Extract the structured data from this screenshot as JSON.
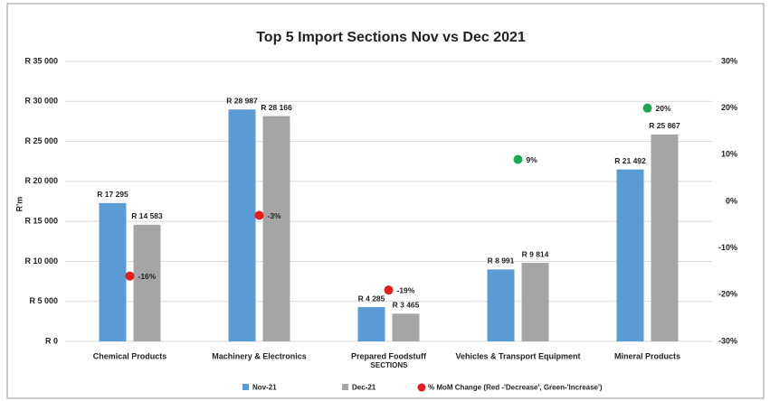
{
  "chart_data": {
    "type": "bar",
    "title": "Top 5 Import Sections Nov vs Dec 2021",
    "x_label": "SECTIONS",
    "y_label": "R'm",
    "categories": [
      "Chemical Products",
      "Machinery & Electronics",
      "Prepared Foodstuff",
      "Vehicles & Transport Equipment",
      "Mineral Products"
    ],
    "series": [
      {
        "name": "Nov-21",
        "color": "#5b9bd5",
        "values": [
          17295,
          28987,
          4285,
          8991,
          21492
        ],
        "value_labels": [
          "R 17 295",
          "R 28 987",
          "R 4 285",
          "R 8 991",
          "R 21 492"
        ]
      },
      {
        "name": "Dec-21",
        "color": "#a5a5a5",
        "values": [
          14583,
          28166,
          3465,
          9814,
          25867
        ],
        "value_labels": [
          "R 14 583",
          "R 28 166",
          "R 3 465",
          "R 9 814",
          "R 25 867"
        ]
      },
      {
        "name": "% MoM Change (Red -'Decrease', Green-'Increase')",
        "type": "scatter",
        "axis": "y2",
        "color": "#e81c1c",
        "colors": [
          "#e81c1c",
          "#e81c1c",
          "#e81c1c",
          "#1aa94f",
          "#1aa94f"
        ],
        "values": [
          -16,
          -3,
          -19,
          9,
          20
        ],
        "value_labels": [
          "-16%",
          "-3%",
          "-19%",
          "9%",
          "20%"
        ]
      }
    ],
    "ylim": [
      0,
      35000
    ],
    "yticks": [
      {
        "value": 0,
        "label": "R 0"
      },
      {
        "value": 5000,
        "label": "R 5 000"
      },
      {
        "value": 10000,
        "label": "R 10 000"
      },
      {
        "value": 15000,
        "label": "R 15 000"
      },
      {
        "value": 20000,
        "label": "R 20 000"
      },
      {
        "value": 25000,
        "label": "R 25 000"
      },
      {
        "value": 30000,
        "label": "R 30 000"
      },
      {
        "value": 35000,
        "label": "R 35 000"
      }
    ],
    "y2lim": [
      -30,
      30
    ],
    "y2ticks": [
      {
        "value": -30,
        "label": "-30%"
      },
      {
        "value": -20,
        "label": "-20%"
      },
      {
        "value": -10,
        "label": "-10%"
      },
      {
        "value": 0,
        "label": "0%"
      },
      {
        "value": 10,
        "label": "10%"
      },
      {
        "value": 20,
        "label": "20%"
      },
      {
        "value": 30,
        "label": "30%"
      }
    ],
    "grid": true,
    "legend": "bottom"
  }
}
